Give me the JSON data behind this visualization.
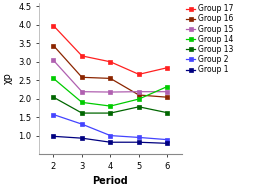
{
  "title": "",
  "xlabel": "Period",
  "ylabel": "χp",
  "xlim": [
    1.5,
    6.5
  ],
  "ylim": [
    0.5,
    4.6
  ],
  "xticks": [
    2,
    3,
    4,
    5,
    6
  ],
  "yticks": [
    1.0,
    1.5,
    2.0,
    2.5,
    3.0,
    3.5,
    4.0,
    4.5
  ],
  "series": [
    {
      "label": "Group 17",
      "color": "#ff2020",
      "marker": "s",
      "x": [
        2,
        3,
        4,
        5,
        6
      ],
      "y": [
        3.98,
        3.16,
        3.0,
        2.66,
        2.84
      ]
    },
    {
      "label": "Group 16",
      "color": "#8b2500",
      "marker": "s",
      "x": [
        2,
        3,
        4,
        5,
        6
      ],
      "y": [
        3.44,
        2.58,
        2.55,
        2.1,
        2.04
      ]
    },
    {
      "label": "Group 15",
      "color": "#b060b0",
      "marker": "s",
      "x": [
        2,
        3,
        4,
        5,
        6
      ],
      "y": [
        3.04,
        2.19,
        2.18,
        2.19,
        2.19
      ]
    },
    {
      "label": "Group 14",
      "color": "#00cc00",
      "marker": "s",
      "x": [
        2,
        3,
        4,
        5,
        6
      ],
      "y": [
        2.55,
        1.9,
        1.8,
        1.99,
        2.33
      ]
    },
    {
      "label": "Group 13",
      "color": "#006600",
      "marker": "s",
      "x": [
        2,
        3,
        4,
        5,
        6
      ],
      "y": [
        2.04,
        1.61,
        1.61,
        1.78,
        1.62
      ]
    },
    {
      "label": "Group 2",
      "color": "#4444ff",
      "marker": "s",
      "x": [
        2,
        3,
        4,
        5,
        6
      ],
      "y": [
        1.57,
        1.31,
        1.0,
        0.95,
        0.89
      ]
    },
    {
      "label": "Group 1",
      "color": "#000080",
      "marker": "s",
      "x": [
        2,
        3,
        4,
        5,
        6
      ],
      "y": [
        0.98,
        0.93,
        0.82,
        0.82,
        0.79
      ]
    }
  ],
  "background_color": "#ffffff",
  "legend_fontsize": 5.5,
  "axis_label_fontsize": 7,
  "tick_fontsize": 6,
  "linewidth": 0.9,
  "markersize": 3
}
